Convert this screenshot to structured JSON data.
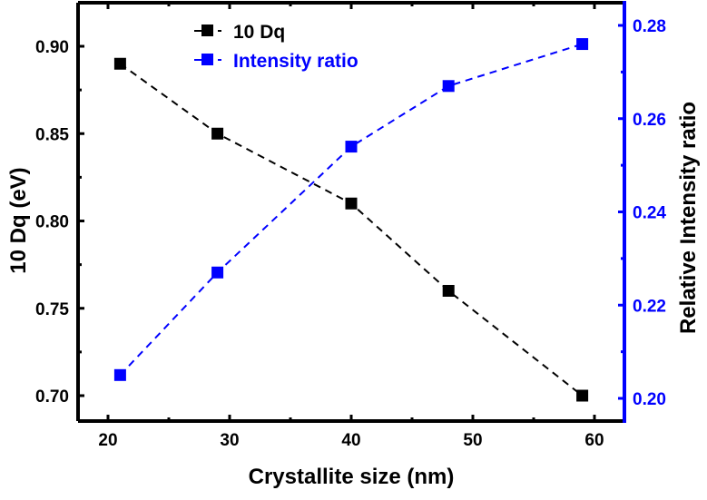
{
  "chart_data": {
    "type": "line",
    "xlabel": "Crystallite size (nm)",
    "ylabel": "10 Dq (eV)",
    "y2label": "Relative Intensity ratio",
    "xlim": [
      19,
      62.5
    ],
    "ylim": [
      0.68,
      0.92
    ],
    "y2lim": [
      0.195,
      0.285
    ],
    "xticks": [
      "20",
      "30",
      "40",
      "50",
      "60"
    ],
    "yticks": [
      "0.70",
      "0.75",
      "0.80",
      "0.85",
      "0.90"
    ],
    "y2ticks": [
      "0.20",
      "0.22",
      "0.24",
      "0.26",
      "0.28"
    ],
    "legend_position": "top-left",
    "grid": false,
    "series": [
      {
        "name": "10 Dq",
        "axis": "left",
        "color": "#000000",
        "marker": "square",
        "line": "dashed",
        "x": [
          21,
          29,
          40,
          48,
          59
        ],
        "y": [
          0.89,
          0.85,
          0.81,
          0.76,
          0.7
        ]
      },
      {
        "name": "Intensity ratio",
        "axis": "right",
        "color": "#0000ff",
        "marker": "square",
        "line": "dashed",
        "x": [
          21,
          29,
          40,
          48,
          59
        ],
        "y": [
          0.205,
          0.227,
          0.254,
          0.267,
          0.276
        ]
      }
    ]
  }
}
